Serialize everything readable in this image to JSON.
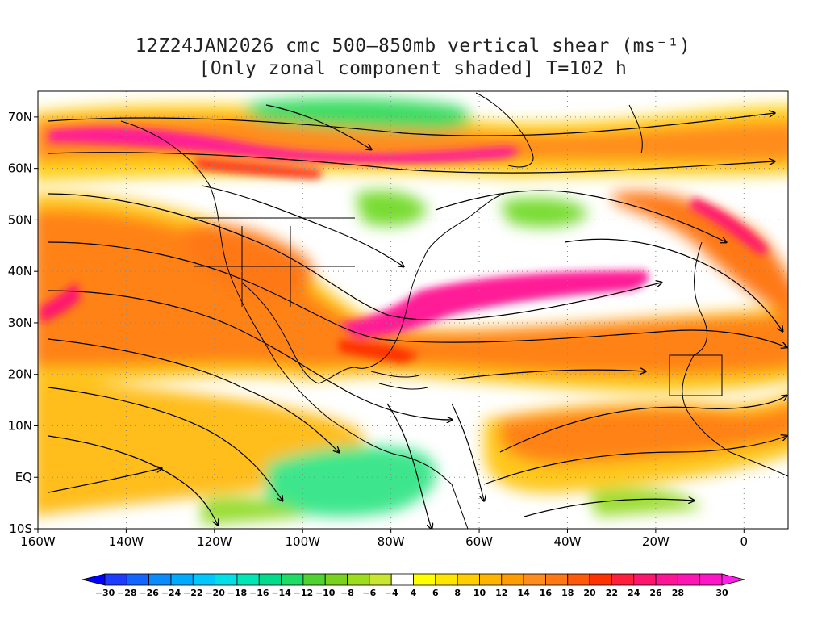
{
  "title_line1": "12Z24JAN2026 cmc 500–850mb vertical shear (ms⁻¹)",
  "title_line2": "[Only zonal component shaded] T=102 h",
  "map": {
    "lat_labels": [
      "70N",
      "60N",
      "50N",
      "40N",
      "30N",
      "20N",
      "10N",
      "EQ",
      "10S"
    ],
    "lat_values": [
      70,
      60,
      50,
      40,
      30,
      20,
      10,
      0,
      -10
    ],
    "lon_labels": [
      "160W",
      "140W",
      "120W",
      "100W",
      "80W",
      "60W",
      "40W",
      "20W",
      "0"
    ],
    "lon_values": [
      -160,
      -140,
      -120,
      -100,
      -80,
      -60,
      -40,
      -20,
      0
    ],
    "lon_range": [
      -160,
      10
    ],
    "lat_range": [
      -10,
      75
    ]
  },
  "colorbar": {
    "labels": [
      "-30",
      "-28",
      "-26",
      "-24",
      "-22",
      "-20",
      "-18",
      "-16",
      "-14",
      "-12",
      "-10",
      "-8",
      "-6",
      "-4",
      "4",
      "6",
      "8",
      "10",
      "12",
      "14",
      "16",
      "18",
      "20",
      "22",
      "24",
      "26",
      "28",
      "30"
    ],
    "colors": [
      "#1e3cff",
      "#1464ff",
      "#0a8cff",
      "#00aaff",
      "#00c8ff",
      "#00e0e6",
      "#00e6b4",
      "#00dc8c",
      "#1edc64",
      "#50d232",
      "#78d21e",
      "#a0dc1e",
      "#c8e632",
      "#ffffff",
      "#ffff00",
      "#ffe600",
      "#ffcd00",
      "#ffb400",
      "#ff9c00",
      "#ff8c1e",
      "#ff7814",
      "#ff5a0a",
      "#ff3200",
      "#ff1e3c",
      "#ff146e",
      "#ff1496",
      "#ff14b4",
      "#ff14c8"
    ],
    "low_color": "#0000ff",
    "high_color": "#ff1ee6"
  }
}
